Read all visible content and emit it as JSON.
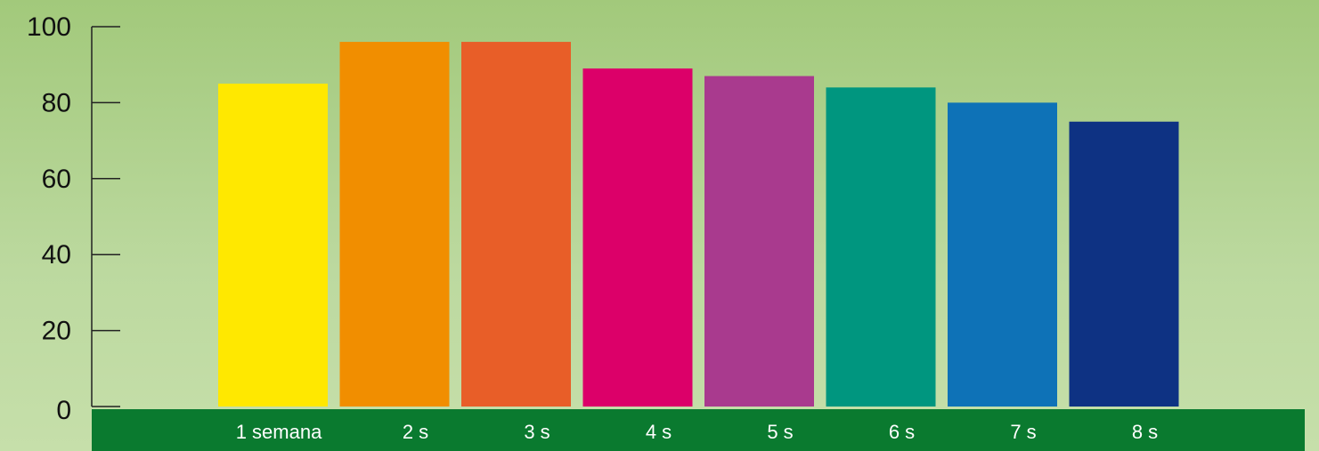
{
  "chart_data": {
    "type": "bar",
    "categories": [
      "1 semana",
      "2 s",
      "3 s",
      "4 s",
      "5 s",
      "6 s",
      "7 s",
      "8 s"
    ],
    "values": [
      85,
      96,
      96,
      89,
      87,
      84,
      80,
      75
    ],
    "colors": [
      "#ffe800",
      "#f18e00",
      "#e85e28",
      "#dc0069",
      "#a93a8e",
      "#00967f",
      "#0e72b7",
      "#0e3283"
    ],
    "title": "",
    "xlabel": "",
    "ylabel": "",
    "ylim": [
      0,
      100
    ],
    "yticks": [
      "0",
      "20",
      "40",
      "60",
      "80",
      "100"
    ],
    "grid": false,
    "axis_band_color": "#0a7a2f",
    "background_color": "#a8cf82"
  }
}
